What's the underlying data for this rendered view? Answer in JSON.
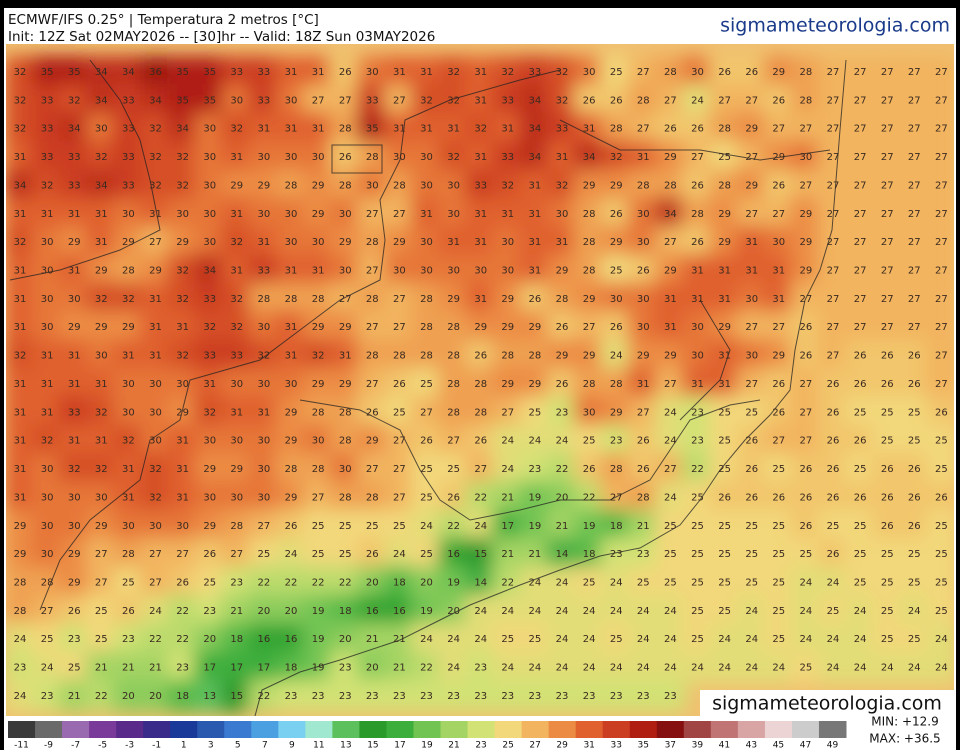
{
  "header": {
    "title": "ECMWF/IFS 0.25° | Temperatura 2 metros [°C]",
    "subtitle": "Init: 12Z Sat 02MAY2026 -- [30]hr -- Valid: 18Z Sun 03MAY2026",
    "brand": "sigmameteorologia.com"
  },
  "watermark": "sigmameteorologia.com",
  "stats": {
    "min": "MIN: +12.9",
    "max": "MAX: +36.5"
  },
  "colorbar": {
    "ticks": [
      -11,
      -9,
      -7,
      -5,
      -3,
      -1,
      1,
      3,
      5,
      7,
      9,
      11,
      13,
      15,
      17,
      19,
      21,
      23,
      25,
      27,
      29,
      31,
      33,
      35,
      37,
      39,
      41,
      43,
      45,
      47,
      49
    ],
    "colors": [
      "#3a3a3a",
      "#6a6a6a",
      "#9a6ab0",
      "#7a3a9a",
      "#5a2a8a",
      "#3a2a8a",
      "#1a3a9a",
      "#2a5ab0",
      "#3a7ad0",
      "#4aa0e0",
      "#7ad0f0",
      "#a0e8d0",
      "#5cc05c",
      "#2a9a2a",
      "#3cae3c",
      "#72c452",
      "#a4d464",
      "#d2e274",
      "#f2d87a",
      "#f2b45e",
      "#ec8c44",
      "#e0602e",
      "#cc3e22",
      "#b01e12",
      "#861010",
      "#a04444",
      "#c07474",
      "#d8a4a4",
      "#ecd4d4",
      "#cccccc",
      "#777777"
    ]
  },
  "field": {
    "rows": [
      [
        32,
        35,
        35,
        34,
        34,
        36,
        35,
        35,
        33,
        33,
        31,
        31,
        26,
        30,
        31,
        31,
        32,
        31,
        32,
        33,
        32,
        30,
        25,
        27,
        28,
        30,
        26,
        26,
        29,
        28,
        27,
        27,
        27,
        27,
        27
      ],
      [
        32,
        33,
        32,
        34,
        33,
        34,
        35,
        35,
        30,
        33,
        30,
        27,
        27,
        33,
        27,
        32,
        32,
        31,
        33,
        34,
        32,
        26,
        26,
        28,
        27,
        24,
        27,
        27,
        26,
        28,
        27,
        27,
        27,
        27,
        27
      ],
      [
        32,
        33,
        34,
        30,
        33,
        32,
        34,
        30,
        32,
        31,
        31,
        31,
        28,
        35,
        31,
        31,
        31,
        32,
        31,
        34,
        33,
        31,
        28,
        27,
        26,
        26,
        28,
        29,
        27,
        27,
        27,
        27,
        27,
        27,
        27
      ],
      [
        31,
        33,
        33,
        32,
        33,
        32,
        32,
        30,
        31,
        30,
        30,
        30,
        26,
        28,
        30,
        30,
        32,
        31,
        33,
        34,
        31,
        34,
        32,
        31,
        29,
        27,
        25,
        27,
        29,
        30,
        27,
        27,
        27,
        27,
        27
      ],
      [
        34,
        32,
        33,
        34,
        33,
        32,
        32,
        30,
        29,
        29,
        28,
        29,
        28,
        30,
        28,
        30,
        30,
        33,
        32,
        31,
        32,
        29,
        29,
        28,
        28,
        26,
        28,
        29,
        26,
        27,
        27,
        27,
        27,
        27,
        27
      ],
      [
        31,
        31,
        31,
        31,
        30,
        31,
        30,
        30,
        31,
        30,
        30,
        29,
        30,
        27,
        27,
        31,
        30,
        31,
        31,
        31,
        30,
        28,
        26,
        30,
        34,
        28,
        29,
        27,
        27,
        29,
        27,
        27,
        27,
        27,
        27
      ],
      [
        32,
        30,
        29,
        31,
        29,
        27,
        29,
        30,
        32,
        31,
        30,
        30,
        29,
        28,
        29,
        30,
        31,
        31,
        30,
        31,
        31,
        28,
        29,
        30,
        27,
        26,
        29,
        31,
        30,
        29,
        27,
        27,
        27,
        27,
        27
      ],
      [
        31,
        30,
        31,
        29,
        28,
        29,
        32,
        34,
        31,
        33,
        31,
        31,
        30,
        27,
        30,
        30,
        30,
        30,
        30,
        31,
        29,
        28,
        25,
        26,
        29,
        31,
        31,
        31,
        31,
        29,
        27,
        27,
        27,
        27,
        27
      ],
      [
        31,
        30,
        30,
        32,
        32,
        31,
        32,
        33,
        32,
        28,
        28,
        28,
        27,
        28,
        27,
        28,
        29,
        31,
        29,
        26,
        28,
        29,
        30,
        30,
        31,
        31,
        31,
        30,
        31,
        27,
        27,
        27,
        27,
        27,
        27
      ],
      [
        31,
        30,
        29,
        29,
        29,
        31,
        31,
        32,
        32,
        30,
        31,
        29,
        29,
        27,
        27,
        28,
        28,
        29,
        29,
        29,
        26,
        27,
        26,
        30,
        31,
        30,
        29,
        27,
        27,
        26,
        27,
        27,
        27,
        27,
        27
      ],
      [
        32,
        31,
        31,
        30,
        31,
        31,
        32,
        33,
        33,
        32,
        31,
        32,
        31,
        28,
        28,
        28,
        28,
        26,
        28,
        28,
        29,
        29,
        24,
        29,
        29,
        30,
        31,
        30,
        29,
        26,
        27,
        26,
        26,
        26,
        27
      ],
      [
        31,
        31,
        31,
        31,
        30,
        30,
        30,
        31,
        30,
        30,
        30,
        29,
        29,
        27,
        26,
        25,
        28,
        28,
        29,
        29,
        26,
        28,
        28,
        31,
        27,
        31,
        31,
        27,
        26,
        27,
        26,
        26,
        26,
        26,
        27
      ],
      [
        31,
        31,
        33,
        32,
        30,
        30,
        29,
        32,
        31,
        31,
        29,
        28,
        28,
        26,
        25,
        27,
        28,
        28,
        27,
        25,
        23,
        30,
        29,
        27,
        24,
        23,
        25,
        25,
        26,
        27,
        26,
        25,
        25,
        25,
        26
      ],
      [
        31,
        32,
        31,
        31,
        32,
        30,
        31,
        30,
        30,
        30,
        29,
        30,
        28,
        29,
        27,
        26,
        27,
        26,
        24,
        24,
        24,
        25,
        23,
        26,
        24,
        23,
        25,
        26,
        27,
        27,
        26,
        26,
        25,
        25,
        25
      ],
      [
        31,
        30,
        32,
        32,
        31,
        32,
        31,
        29,
        29,
        30,
        28,
        28,
        30,
        27,
        27,
        25,
        25,
        27,
        24,
        23,
        22,
        26,
        28,
        26,
        27,
        22,
        25,
        26,
        25,
        26,
        26,
        25,
        26,
        26,
        25
      ],
      [
        31,
        30,
        30,
        30,
        31,
        32,
        31,
        30,
        30,
        30,
        29,
        27,
        28,
        28,
        27,
        25,
        26,
        22,
        21,
        19,
        20,
        22,
        27,
        28,
        24,
        25,
        26,
        26,
        26,
        26,
        26,
        26,
        26,
        26,
        26
      ],
      [
        29,
        30,
        30,
        29,
        30,
        30,
        30,
        29,
        28,
        27,
        26,
        25,
        25,
        25,
        25,
        24,
        22,
        24,
        17,
        19,
        21,
        19,
        18,
        21,
        25,
        25,
        25,
        25,
        25,
        26,
        25,
        25,
        26,
        26,
        25
      ],
      [
        29,
        30,
        29,
        27,
        28,
        27,
        27,
        26,
        27,
        25,
        24,
        25,
        25,
        26,
        24,
        25,
        16,
        15,
        21,
        21,
        14,
        18,
        23,
        23,
        25,
        25,
        25,
        25,
        25,
        25,
        26,
        25,
        25,
        25,
        25
      ],
      [
        28,
        28,
        29,
        27,
        25,
        27,
        26,
        25,
        23,
        22,
        22,
        22,
        22,
        20,
        18,
        20,
        19,
        14,
        22,
        24,
        24,
        25,
        24,
        25,
        25,
        25,
        25,
        25,
        25,
        24,
        24,
        25,
        25,
        25,
        25
      ],
      [
        28,
        27,
        26,
        25,
        26,
        24,
        22,
        23,
        21,
        20,
        20,
        19,
        18,
        16,
        16,
        19,
        20,
        24,
        24,
        24,
        24,
        24,
        24,
        24,
        24,
        25,
        25,
        24,
        25,
        24,
        25,
        24,
        25,
        24,
        25
      ],
      [
        24,
        25,
        23,
        25,
        23,
        22,
        22,
        20,
        18,
        16,
        16,
        19,
        20,
        21,
        21,
        24,
        24,
        24,
        25,
        25,
        24,
        24,
        25,
        24,
        24,
        25,
        24,
        24,
        25,
        24,
        24,
        24,
        25,
        25,
        24
      ],
      [
        23,
        24,
        25,
        21,
        21,
        21,
        23,
        17,
        17,
        17,
        18,
        19,
        23,
        20,
        21,
        22,
        24,
        23,
        24,
        24,
        24,
        24,
        24,
        24,
        24,
        24,
        24,
        24,
        24,
        25,
        24,
        24,
        24,
        24,
        24
      ],
      [
        24,
        23,
        21,
        22,
        20,
        20,
        18,
        13,
        15,
        22,
        23,
        23,
        23,
        23,
        23,
        23,
        23,
        23,
        23,
        23,
        23,
        23,
        23,
        23,
        23
      ]
    ]
  }
}
